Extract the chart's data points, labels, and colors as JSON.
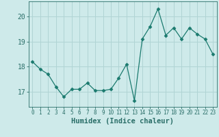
{
  "x": [
    0,
    1,
    2,
    3,
    4,
    5,
    6,
    7,
    8,
    9,
    10,
    11,
    12,
    13,
    14,
    15,
    16,
    17,
    18,
    19,
    20,
    21,
    22,
    23
  ],
  "y": [
    18.2,
    17.9,
    17.7,
    17.2,
    16.8,
    17.1,
    17.1,
    17.35,
    17.05,
    17.05,
    17.1,
    17.55,
    18.1,
    16.65,
    19.1,
    19.6,
    20.3,
    19.25,
    19.55,
    19.1,
    19.55,
    19.3,
    19.1,
    18.5
  ],
  "line_color": "#1a7a6e",
  "marker": "D",
  "marker_size": 2.5,
  "background_color": "#ceeaea",
  "grid_color": "#b0d4d4",
  "xlabel": "Humidex (Indice chaleur)",
  "xlim": [
    -0.5,
    23.5
  ],
  "ylim": [
    16.4,
    20.6
  ],
  "yticks": [
    17,
    18,
    19,
    20
  ],
  "xticks": [
    0,
    1,
    2,
    3,
    4,
    5,
    6,
    7,
    8,
    9,
    10,
    11,
    12,
    13,
    14,
    15,
    16,
    17,
    18,
    19,
    20,
    21,
    22,
    23
  ],
  "xlabel_fontsize": 7.5,
  "ytick_fontsize": 7,
  "xtick_fontsize": 5.5,
  "text_color": "#2a6e68"
}
